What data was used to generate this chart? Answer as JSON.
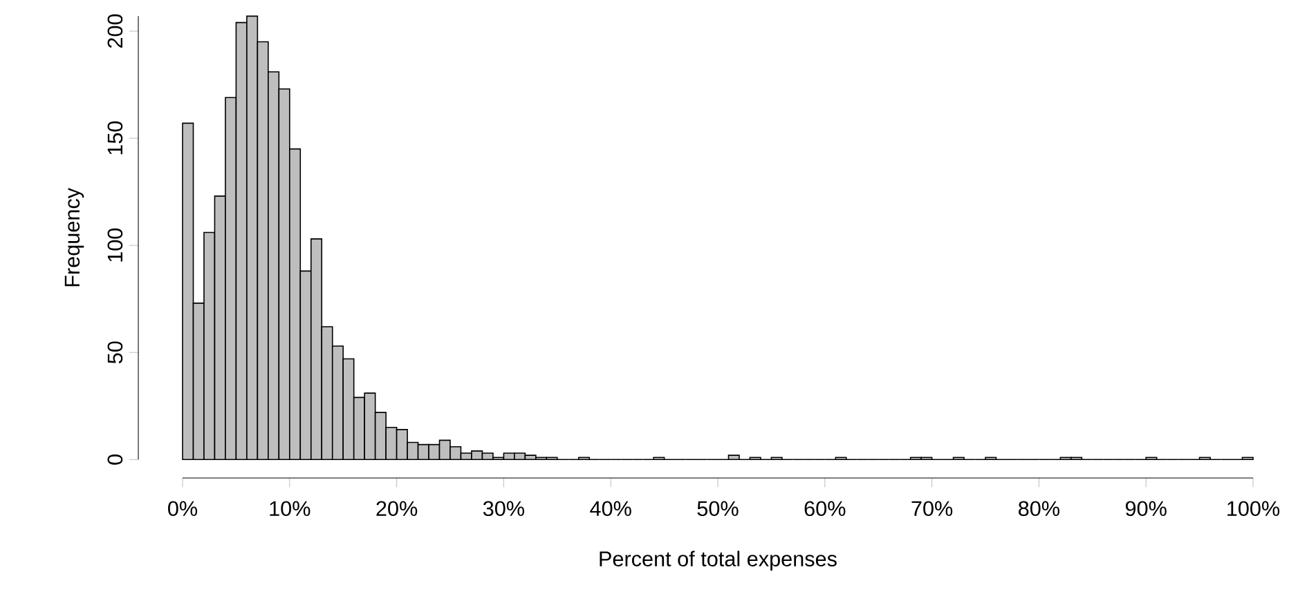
{
  "chart_data": {
    "type": "histogram",
    "xlabel": "Percent of total expenses",
    "ylabel": "Frequency",
    "bins": [
      0,
      1,
      2,
      3,
      4,
      5,
      6,
      7,
      8,
      9,
      10,
      11,
      12,
      13,
      14,
      15,
      16,
      17,
      18,
      19,
      20,
      21,
      22,
      23,
      24,
      25,
      26,
      27,
      28,
      29,
      30,
      31,
      32,
      33,
      34,
      35,
      36,
      37,
      38,
      39,
      40,
      41,
      42,
      43,
      44,
      45,
      46,
      47,
      48,
      49,
      50,
      51,
      52,
      53,
      54,
      55,
      56,
      57,
      58,
      59,
      60,
      61,
      62,
      63,
      64,
      65,
      66,
      67,
      68,
      69,
      70,
      71,
      72,
      73,
      74,
      75,
      76,
      77,
      78,
      79,
      80,
      81,
      82,
      83,
      84,
      85,
      86,
      87,
      88,
      89,
      90,
      91,
      92,
      93,
      94,
      95,
      96,
      97,
      98,
      99,
      100
    ],
    "values": [
      157,
      73,
      106,
      123,
      169,
      204,
      207,
      195,
      181,
      173,
      145,
      88,
      103,
      62,
      53,
      47,
      29,
      31,
      22,
      15,
      14,
      8,
      7,
      7,
      9,
      6,
      3,
      4,
      3,
      1,
      3,
      3,
      2,
      1,
      1,
      0,
      0,
      1,
      0,
      0,
      0,
      0,
      0,
      0,
      1,
      0,
      0,
      0,
      0,
      0,
      0,
      2,
      0,
      1,
      0,
      1,
      0,
      0,
      0,
      0,
      0,
      1,
      0,
      0,
      0,
      0,
      0,
      0,
      1,
      1,
      0,
      0,
      1,
      0,
      0,
      1,
      0,
      0,
      0,
      0,
      0,
      0,
      1,
      1,
      0,
      0,
      0,
      0,
      0,
      0,
      1,
      0,
      0,
      0,
      0,
      1,
      0,
      0,
      0,
      1
    ],
    "color": "#bebebe",
    "xlim": [
      0,
      100
    ],
    "ylim": [
      0,
      207
    ],
    "xticks": [
      {
        "value": 0,
        "label": "0%"
      },
      {
        "value": 10,
        "label": "10%"
      },
      {
        "value": 20,
        "label": "20%"
      },
      {
        "value": 30,
        "label": "30%"
      },
      {
        "value": 40,
        "label": "40%"
      },
      {
        "value": 50,
        "label": "50%"
      },
      {
        "value": 60,
        "label": "60%"
      },
      {
        "value": 70,
        "label": "70%"
      },
      {
        "value": 80,
        "label": "80%"
      },
      {
        "value": 90,
        "label": "90%"
      },
      {
        "value": 100,
        "label": "100%"
      }
    ],
    "yticks": [
      0,
      50,
      100,
      150,
      200
    ],
    "grid": false
  }
}
